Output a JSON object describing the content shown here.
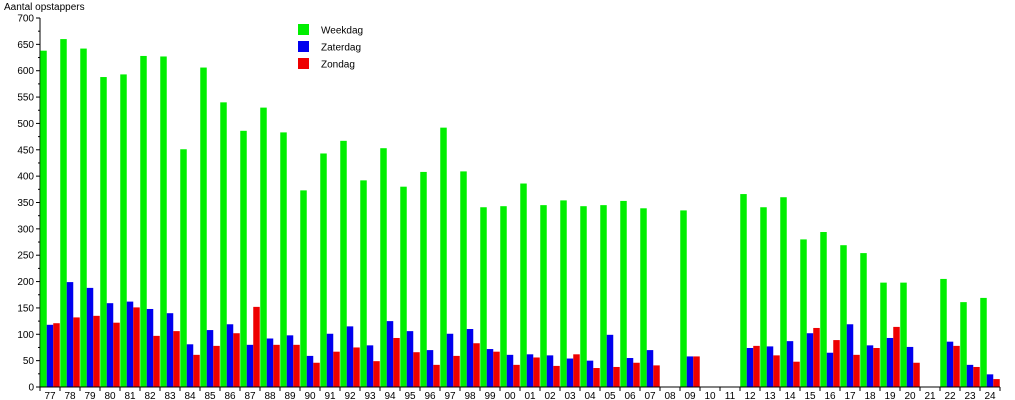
{
  "chart_data": {
    "type": "bar",
    "ylabel": "Aantal opstappers",
    "xlabel": "",
    "ylim": [
      0,
      700
    ],
    "yticks": [
      0,
      50,
      100,
      150,
      200,
      250,
      300,
      350,
      400,
      450,
      500,
      550,
      600,
      650,
      700
    ],
    "legend_position": "top-center",
    "categories": [
      "77",
      "78",
      "79",
      "80",
      "81",
      "82",
      "83",
      "84",
      "85",
      "86",
      "87",
      "88",
      "89",
      "90",
      "91",
      "92",
      "93",
      "94",
      "95",
      "96",
      "97",
      "98",
      "99",
      "00",
      "01",
      "02",
      "03",
      "04",
      "05",
      "06",
      "07",
      "08",
      "09",
      "10",
      "11",
      "12",
      "13",
      "14",
      "15",
      "16",
      "17",
      "18",
      "19",
      "20",
      "21",
      "22",
      "23",
      "24"
    ],
    "series": [
      {
        "name": "Weekdag",
        "color": "#00ee00",
        "values": [
          638,
          660,
          642,
          588,
          593,
          628,
          627,
          451,
          606,
          540,
          486,
          530,
          483,
          373,
          443,
          467,
          392,
          453,
          380,
          408,
          492,
          409,
          341,
          343,
          386,
          345,
          354,
          343,
          345,
          353,
          339,
          null,
          335,
          null,
          null,
          366,
          341,
          360,
          280,
          294,
          269,
          254,
          198,
          198,
          null,
          205,
          161,
          169
        ]
      },
      {
        "name": "Zaterdag",
        "color": "#0000ee",
        "values": [
          118,
          199,
          188,
          159,
          162,
          148,
          140,
          81,
          108,
          119,
          80,
          92,
          98,
          59,
          101,
          115,
          79,
          125,
          106,
          70,
          101,
          110,
          72,
          61,
          62,
          60,
          54,
          50,
          99,
          55,
          70,
          null,
          58,
          null,
          null,
          74,
          77,
          87,
          102,
          65,
          119,
          79,
          93,
          76,
          null,
          86,
          42,
          24
        ]
      },
      {
        "name": "Zondag",
        "color": "#ee0000",
        "values": [
          121,
          132,
          135,
          122,
          151,
          97,
          106,
          61,
          78,
          102,
          152,
          80,
          80,
          46,
          67,
          75,
          49,
          93,
          66,
          42,
          59,
          83,
          67,
          42,
          56,
          40,
          62,
          36,
          38,
          46,
          41,
          null,
          58,
          null,
          null,
          78,
          60,
          48,
          112,
          89,
          61,
          74,
          114,
          46,
          null,
          78,
          38,
          15
        ]
      }
    ]
  }
}
